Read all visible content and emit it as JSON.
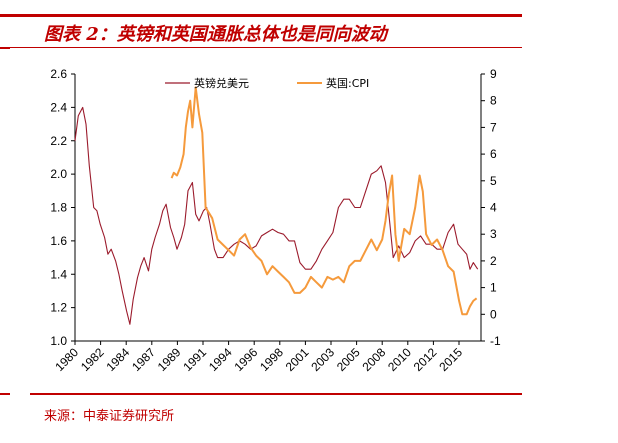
{
  "header": {
    "title": "图表 2：英镑和英国通胀总体也是同向波动"
  },
  "footer": {
    "source": "来源：中泰证券研究所"
  },
  "chart_data": {
    "type": "line",
    "title": "",
    "legend_placement": "top",
    "left_axis": {
      "range": [
        1.0,
        2.6
      ],
      "ticks": [
        "1.0",
        "1.2",
        "1.4",
        "1.6",
        "1.8",
        "2.0",
        "2.2",
        "2.4",
        "2.6"
      ]
    },
    "right_axis": {
      "range": [
        -1,
        9
      ],
      "ticks": [
        "-1",
        "0",
        "1",
        "2",
        "3",
        "4",
        "5",
        "6",
        "7",
        "8",
        "9"
      ]
    },
    "x_range": [
      1980,
      2017
    ],
    "x_tick_labels": [
      "1980",
      "1982",
      "1984",
      "1987",
      "1989",
      "1991",
      "1994",
      "1996",
      "1998",
      "2001",
      "2003",
      "2005",
      "2008",
      "2010",
      "2012",
      "2015"
    ],
    "series": [
      {
        "name": "英镑兑美元",
        "color": "#9b1b2c",
        "axis": "left",
        "x": [
          1980.0,
          1980.3,
          1980.7,
          1981.0,
          1981.3,
          1981.7,
          1982.0,
          1982.3,
          1982.7,
          1983.0,
          1983.3,
          1983.7,
          1984.0,
          1984.3,
          1984.7,
          1985.0,
          1985.3,
          1985.7,
          1986.0,
          1986.3,
          1986.7,
          1987.0,
          1987.3,
          1987.7,
          1988.0,
          1988.3,
          1988.7,
          1989.0,
          1989.3,
          1989.7,
          1990.0,
          1990.3,
          1990.7,
          1991.0,
          1991.3,
          1991.7,
          1992.0,
          1992.3,
          1992.7,
          1993.0,
          1993.5,
          1994.0,
          1994.5,
          1995.0,
          1995.5,
          1996.0,
          1996.5,
          1997.0,
          1997.5,
          1998.0,
          1998.5,
          1999.0,
          1999.5,
          2000.0,
          2000.5,
          2001.0,
          2001.5,
          2002.0,
          2002.5,
          2003.0,
          2003.5,
          2004.0,
          2004.5,
          2005.0,
          2005.5,
          2006.0,
          2006.5,
          2007.0,
          2007.5,
          2007.9,
          2008.3,
          2008.7,
          2009.0,
          2009.5,
          2010.0,
          2010.5,
          2011.0,
          2011.5,
          2012.0,
          2012.5,
          2013.0,
          2013.5,
          2014.0,
          2014.5,
          2014.9,
          2015.3,
          2015.7,
          2016.0,
          2016.3,
          2016.7
        ],
        "y": [
          2.2,
          2.35,
          2.4,
          2.3,
          2.05,
          1.8,
          1.78,
          1.7,
          1.62,
          1.52,
          1.55,
          1.48,
          1.4,
          1.3,
          1.18,
          1.1,
          1.25,
          1.38,
          1.45,
          1.5,
          1.42,
          1.55,
          1.62,
          1.7,
          1.78,
          1.82,
          1.68,
          1.62,
          1.55,
          1.62,
          1.7,
          1.9,
          1.95,
          1.76,
          1.72,
          1.78,
          1.8,
          1.7,
          1.55,
          1.5,
          1.5,
          1.55,
          1.58,
          1.6,
          1.58,
          1.55,
          1.57,
          1.63,
          1.65,
          1.67,
          1.65,
          1.64,
          1.6,
          1.6,
          1.47,
          1.43,
          1.43,
          1.48,
          1.55,
          1.6,
          1.65,
          1.8,
          1.85,
          1.85,
          1.8,
          1.8,
          1.9,
          2.0,
          2.02,
          2.05,
          1.95,
          1.7,
          1.5,
          1.57,
          1.5,
          1.53,
          1.6,
          1.63,
          1.58,
          1.58,
          1.55,
          1.55,
          1.65,
          1.7,
          1.58,
          1.55,
          1.52,
          1.43,
          1.47,
          1.43
        ]
      },
      {
        "name": "英国:CPI",
        "color": "#f59a3c",
        "axis": "right",
        "x": [
          1988.8,
          1989.0,
          1989.3,
          1989.6,
          1989.9,
          1990.1,
          1990.3,
          1990.5,
          1990.7,
          1991.0,
          1991.3,
          1991.6,
          1991.9,
          1992.2,
          1992.5,
          1993.0,
          1993.5,
          1994.0,
          1994.5,
          1995.0,
          1995.5,
          1996.0,
          1996.5,
          1997.0,
          1997.5,
          1998.0,
          1998.5,
          1999.0,
          1999.5,
          2000.0,
          2000.5,
          2001.0,
          2001.5,
          2002.0,
          2002.5,
          2003.0,
          2003.5,
          2004.0,
          2004.5,
          2005.0,
          2005.5,
          2006.0,
          2006.5,
          2007.0,
          2007.5,
          2008.0,
          2008.3,
          2008.6,
          2008.9,
          2009.2,
          2009.5,
          2010.0,
          2010.5,
          2011.0,
          2011.4,
          2011.7,
          2012.0,
          2012.5,
          2013.0,
          2013.5,
          2014.0,
          2014.5,
          2015.0,
          2015.3,
          2015.7,
          2016.0,
          2016.3,
          2016.6
        ],
        "y": [
          5.1,
          5.3,
          5.2,
          5.5,
          6.0,
          7.0,
          7.6,
          8.0,
          7.0,
          8.5,
          7.5,
          6.8,
          4.0,
          3.8,
          3.6,
          2.8,
          2.6,
          2.4,
          2.2,
          2.8,
          3.0,
          2.5,
          2.2,
          2.0,
          1.5,
          1.8,
          1.6,
          1.4,
          1.2,
          0.8,
          0.8,
          1.0,
          1.4,
          1.2,
          1.0,
          1.4,
          1.3,
          1.4,
          1.2,
          1.8,
          2.0,
          2.0,
          2.4,
          2.8,
          2.4,
          2.8,
          3.5,
          4.5,
          5.2,
          3.0,
          2.0,
          3.2,
          3.0,
          4.0,
          5.2,
          4.6,
          3.0,
          2.6,
          2.8,
          2.4,
          1.8,
          1.6,
          0.5,
          0.0,
          0.0,
          0.3,
          0.5,
          0.6
        ]
      }
    ]
  }
}
